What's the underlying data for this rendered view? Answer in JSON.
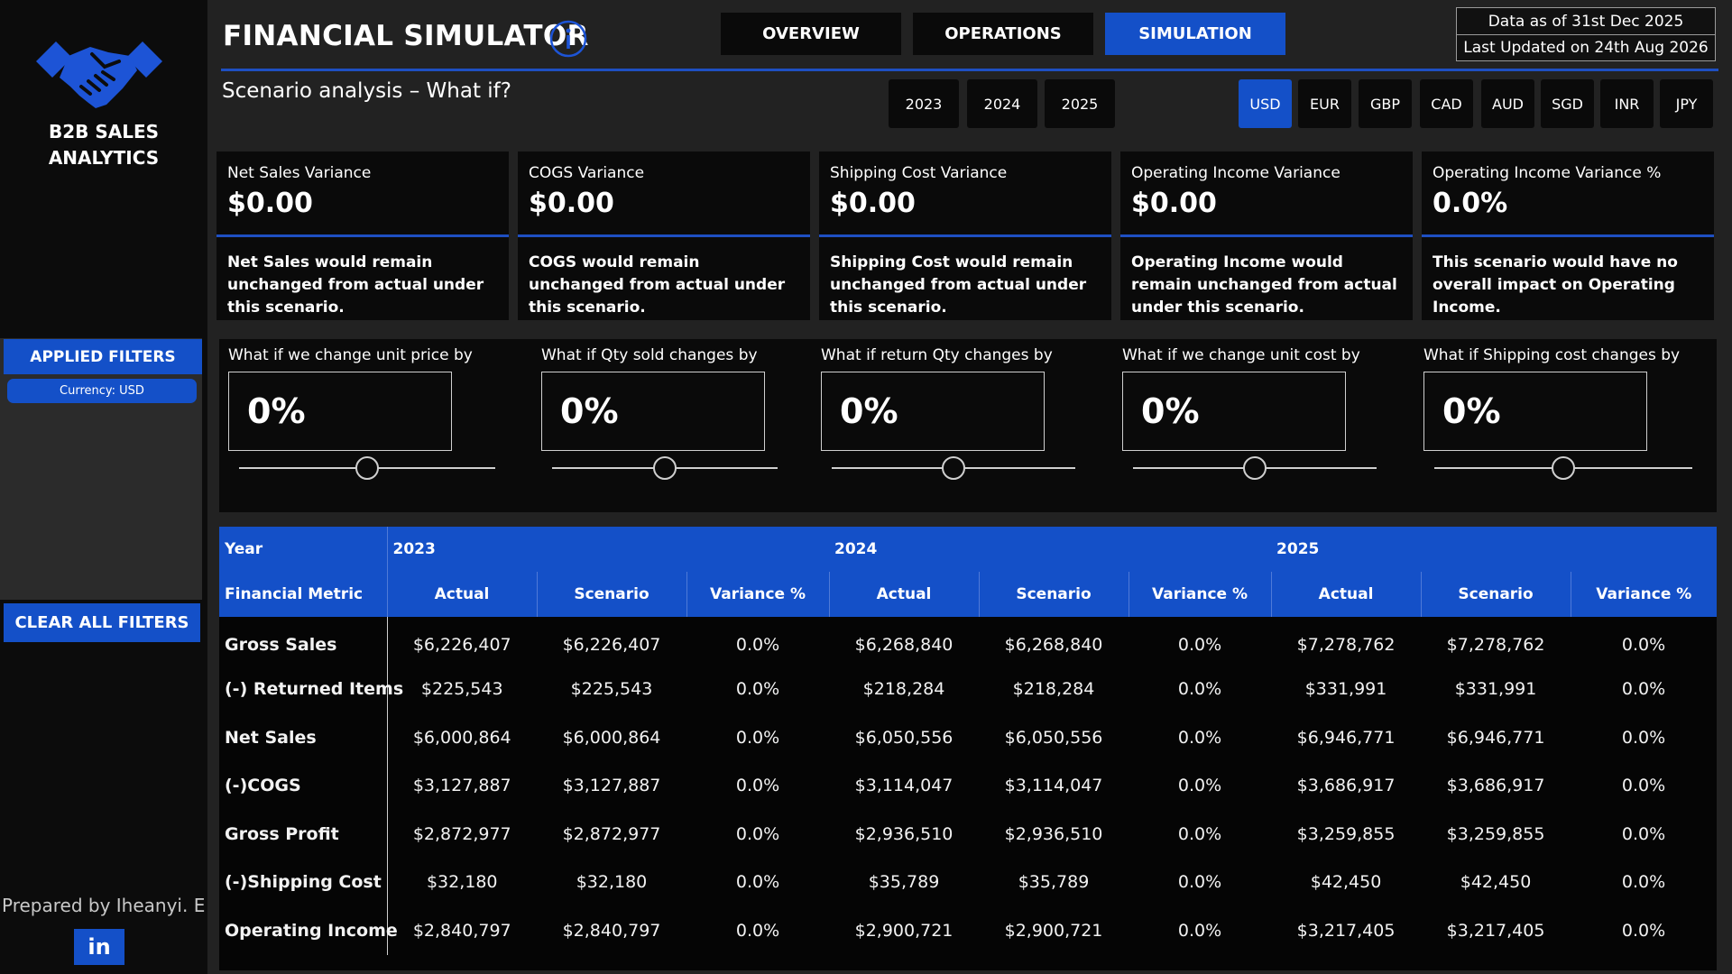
{
  "sidebar": {
    "brand_line1": "B2B SALES",
    "brand_line2": "ANALYTICS",
    "applied_filters_label": "APPLIED FILTERS",
    "currency_chip": "Currency: USD",
    "clear_filters_label": "CLEAR ALL FILTERS",
    "prepared_by": "Prepared by Iheanyi. E",
    "linkedin_label": "in"
  },
  "header": {
    "title": "FINANCIAL SIMULATOR",
    "subtitle": "Scenario analysis – What if?",
    "tabs": [
      {
        "label": "OVERVIEW"
      },
      {
        "label": "OPERATIONS"
      },
      {
        "label": "SIMULATION"
      }
    ],
    "active_tab": "SIMULATION",
    "data_as_of": "Data as of 31st Dec 2025",
    "last_updated": "Last Updated on 24th Aug 2026",
    "years": [
      "2023",
      "2024",
      "2025"
    ],
    "currencies": [
      "USD",
      "EUR",
      "GBP",
      "CAD",
      "AUD",
      "SGD",
      "INR",
      "JPY"
    ],
    "active_currency": "USD"
  },
  "colors": {
    "accent": "#1450c8",
    "background": "#222222",
    "panel": "#0a0a0a"
  },
  "kpis": [
    {
      "label": "Net Sales Variance",
      "value": "$0.00",
      "desc": "Net Sales would remain unchanged from actual under this scenario."
    },
    {
      "label": "COGS Variance",
      "value": "$0.00",
      "desc": "COGS would remain unchanged from actual under this scenario."
    },
    {
      "label": "Shipping Cost Variance",
      "value": "$0.00",
      "desc": "Shipping Cost would remain unchanged from actual under this scenario."
    },
    {
      "label": "Operating Income Variance",
      "value": "$0.00",
      "desc": "Operating Income would remain unchanged from actual under this scenario."
    },
    {
      "label": "Operating Income Variance %",
      "value": "0.0%",
      "desc": "This scenario would have no overall impact on Operating Income."
    }
  ],
  "params": [
    {
      "label": "What if we change unit price by",
      "value": "0%",
      "level": 0.5
    },
    {
      "label": "What if Qty sold changes by",
      "value": "0%",
      "level": 0.5
    },
    {
      "label": "What if return Qty changes by",
      "value": "0%",
      "level": 0.5
    },
    {
      "label": "What if we change unit cost by",
      "value": "0%",
      "level": 0.5
    },
    {
      "label": "What if Shipping cost changes by",
      "value": "0%",
      "level": 0.5
    }
  ],
  "table": {
    "year_header": "Year",
    "metric_header": "Financial Metric",
    "years": [
      "2023",
      "2024",
      "2025"
    ],
    "sub_headers": [
      "Actual",
      "Scenario",
      "Variance %"
    ],
    "rows": [
      {
        "metric": "Gross Sales",
        "values": [
          "$6,226,407",
          "$6,226,407",
          "0.0%",
          "$6,268,840",
          "$6,268,840",
          "0.0%",
          "$7,278,762",
          "$7,278,762",
          "0.0%"
        ]
      },
      {
        "metric": "(-) Returned Items",
        "values": [
          "$225,543",
          "$225,543",
          "0.0%",
          "$218,284",
          "$218,284",
          "0.0%",
          "$331,991",
          "$331,991",
          "0.0%"
        ]
      },
      {
        "metric": "Net Sales",
        "values": [
          "$6,000,864",
          "$6,000,864",
          "0.0%",
          "$6,050,556",
          "$6,050,556",
          "0.0%",
          "$6,946,771",
          "$6,946,771",
          "0.0%"
        ]
      },
      {
        "metric": "(-)COGS",
        "values": [
          "$3,127,887",
          "$3,127,887",
          "0.0%",
          "$3,114,047",
          "$3,114,047",
          "0.0%",
          "$3,686,917",
          "$3,686,917",
          "0.0%"
        ]
      },
      {
        "metric": "Gross Profit",
        "values": [
          "$2,872,977",
          "$2,872,977",
          "0.0%",
          "$2,936,510",
          "$2,936,510",
          "0.0%",
          "$3,259,855",
          "$3,259,855",
          "0.0%"
        ]
      },
      {
        "metric": "(-)Shipping Cost",
        "values": [
          "$32,180",
          "$32,180",
          "0.0%",
          "$35,789",
          "$35,789",
          "0.0%",
          "$42,450",
          "$42,450",
          "0.0%"
        ]
      },
      {
        "metric": "Operating Income",
        "values": [
          "$2,840,797",
          "$2,840,797",
          "0.0%",
          "$2,900,721",
          "$2,900,721",
          "0.0%",
          "$3,217,405",
          "$3,217,405",
          "0.0%"
        ]
      }
    ]
  }
}
